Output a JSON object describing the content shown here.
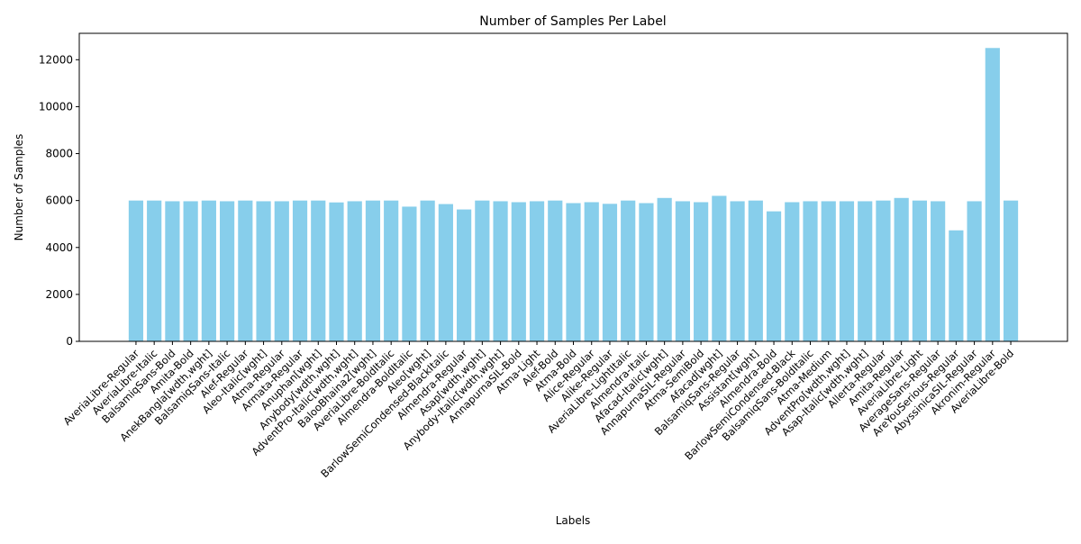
{
  "chart_data": {
    "type": "bar",
    "title": "Number of Samples Per Label",
    "xlabel": "Labels",
    "ylabel": "Number of Samples",
    "ylim": [
      0,
      13125
    ],
    "yticks": [
      0,
      2000,
      4000,
      6000,
      8000,
      10000,
      12000
    ],
    "grid": false,
    "bar_color": "#87ceeb",
    "categories": [
      "AveriaLibre-Regular",
      "AveriaLibre-Italic",
      "BalsamiqSans-Bold",
      "Amita-Bold",
      "AnekBangla[wdth,wght]",
      "BalsamiqSans-Italic",
      "Alef-Regular",
      "Aleo-Italic[wght]",
      "Atma-Regular",
      "Armata-Regular",
      "Anuphan[wght]",
      "Anybody[wdth,wght]",
      "AdventPro-Italic[wdth,wght]",
      "BalooBhaina2[wght]",
      "AveriaLibre-BoldItalic",
      "Almendra-BoldItalic",
      "Aleo[wght]",
      "BarlowSemiCondensed-BlackItalic",
      "Almendra-Regular",
      "Asap[wdth,wght]",
      "Anybody-Italic[wdth,wght]",
      "AnnapurnaSIL-Bold",
      "Atma-Light",
      "Alef-Bold",
      "Atma-Bold",
      "Alice-Regular",
      "Alike-Regular",
      "AveriaLibre-LightItalic",
      "Almendra-Italic",
      "Afacad-Italic[wght]",
      "AnnapurnaSIL-Regular",
      "Atma-SemiBold",
      "Afacad[wght]",
      "BalsamiqSans-Regular",
      "Assistant[wght]",
      "Almendra-Bold",
      "BarlowSemiCondensed-Black",
      "BalsamiqSans-BoldItalic",
      "Atma-Medium",
      "AdventPro[wdth,wght]",
      "Asap-Italic[wdth,wght]",
      "Allerta-Regular",
      "Amita-Regular",
      "AveriaLibre-Light",
      "AverageSans-Regular",
      "AreYouSerious-Regular",
      "AbyssinicaSIL-Regular",
      "Akronim-Regular",
      "AveriaLibre-Bold"
    ],
    "values": [
      6000,
      6000,
      5970,
      5970,
      6000,
      5970,
      6000,
      5970,
      5970,
      6000,
      6000,
      5920,
      5970,
      6000,
      6000,
      5740,
      6000,
      5850,
      5620,
      6000,
      5970,
      5930,
      5970,
      6000,
      5890,
      5930,
      5860,
      6000,
      5890,
      6110,
      5970,
      5930,
      6200,
      5970,
      6000,
      5540,
      5930,
      5970,
      5970,
      5970,
      5970,
      6000,
      6110,
      6000,
      5970,
      4730,
      5970,
      12500,
      6000
    ]
  }
}
